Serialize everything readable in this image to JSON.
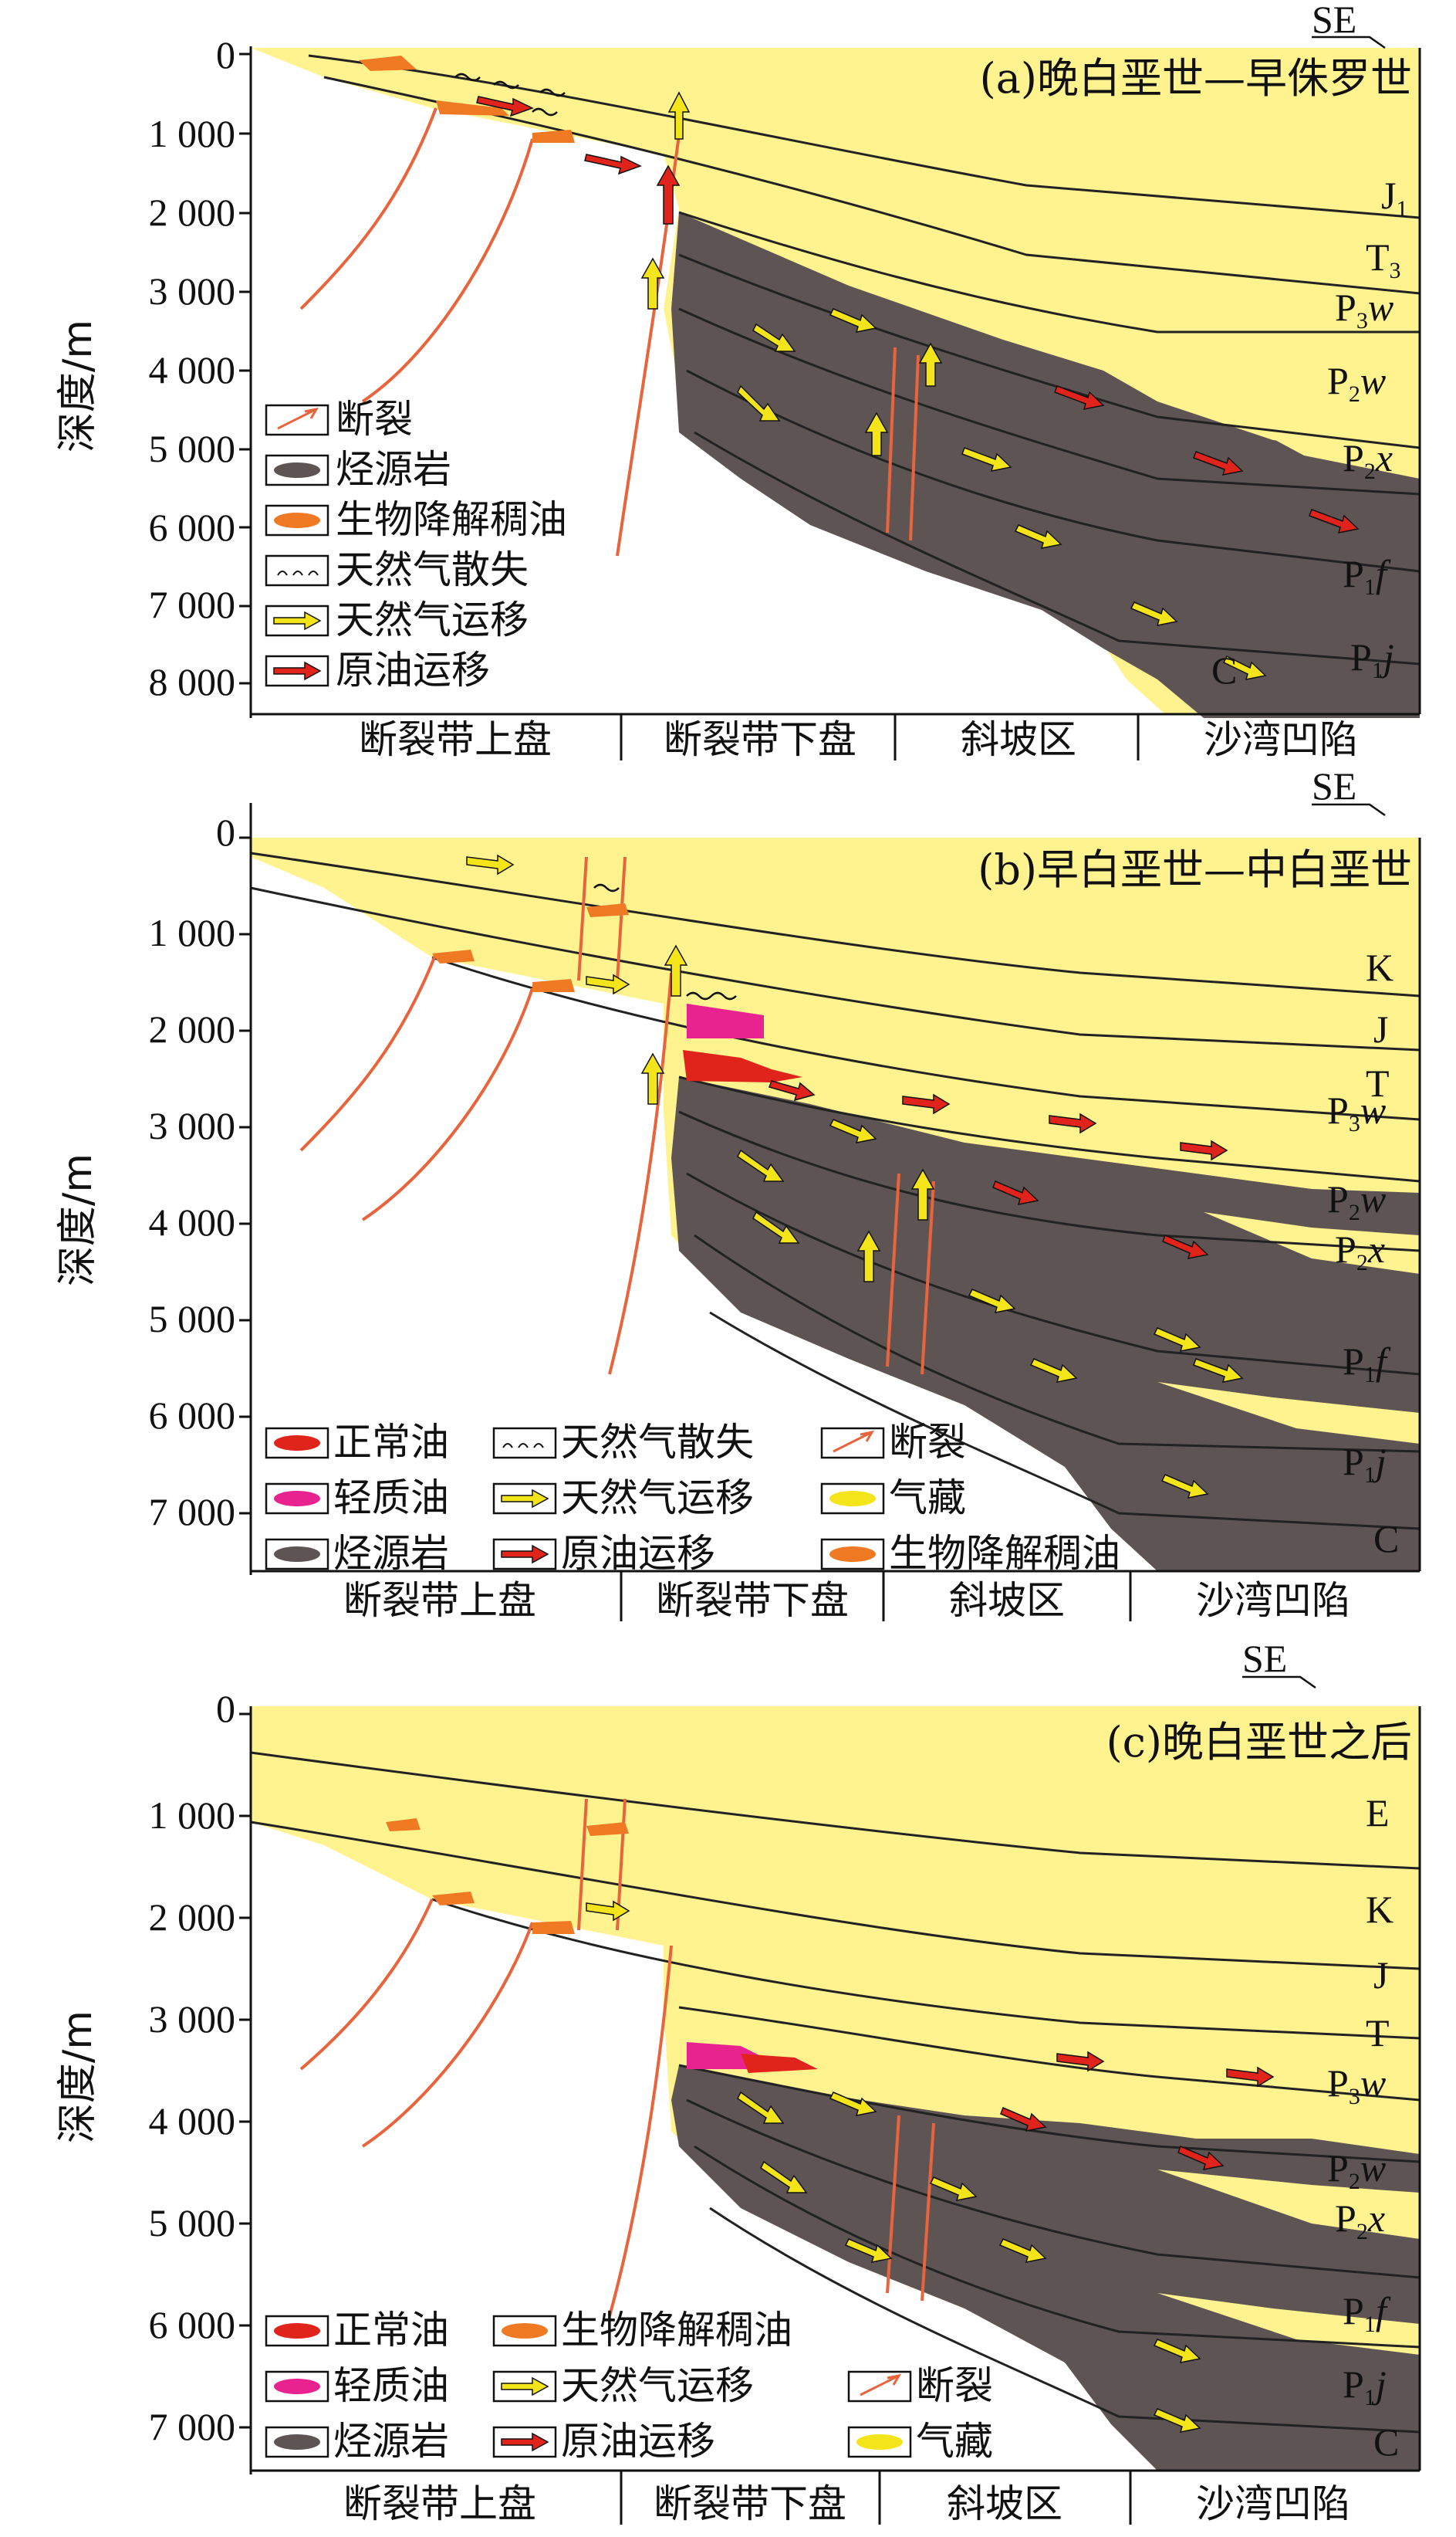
{
  "panels": [
    {
      "title": "(a)晚白垩世—早侏罗世",
      "direction": "SE",
      "depth_ticks": [
        "0",
        "1 000",
        "2 000",
        "3 000",
        "4 000",
        "5 000",
        "6 000",
        "7 000",
        "8 000"
      ],
      "y_axis_label": "深度/m",
      "zones": [
        "断裂带上盘",
        "断裂带下盘",
        "斜坡区",
        "沙湾凹陷"
      ],
      "formations": [
        {
          "base": "J",
          "sub": "1",
          "tail": ""
        },
        {
          "base": "T",
          "sub": "3",
          "tail": ""
        },
        {
          "base": "P",
          "sub": "3",
          "tail": "w"
        },
        {
          "base": "P",
          "sub": "2",
          "tail": "w"
        },
        {
          "base": "P",
          "sub": "2",
          "tail": "x"
        },
        {
          "base": "P",
          "sub": "1",
          "tail": "f"
        },
        {
          "base": "P",
          "sub": "1",
          "tail": "j"
        },
        {
          "base": "C",
          "sub": "",
          "tail": ""
        }
      ],
      "legend": [
        "断裂",
        "烃源岩",
        "生物降解稠油",
        "天然气散失",
        "天然气运移",
        "原油运移"
      ]
    },
    {
      "title": "(b)早白垩世—中白垩世",
      "direction": "SE",
      "depth_ticks": [
        "0",
        "1 000",
        "2 000",
        "3 000",
        "4 000",
        "5 000",
        "6 000",
        "7 000"
      ],
      "y_axis_label": "深度/m",
      "zones": [
        "断裂带上盘",
        "断裂带下盘",
        "斜坡区",
        "沙湾凹陷"
      ],
      "formations": [
        {
          "base": "K",
          "sub": "",
          "tail": ""
        },
        {
          "base": "J",
          "sub": "",
          "tail": ""
        },
        {
          "base": "T",
          "sub": "",
          "tail": ""
        },
        {
          "base": "P",
          "sub": "3",
          "tail": "w"
        },
        {
          "base": "P",
          "sub": "2",
          "tail": "w"
        },
        {
          "base": "P",
          "sub": "2",
          "tail": "x"
        },
        {
          "base": "P",
          "sub": "1",
          "tail": "f"
        },
        {
          "base": "P",
          "sub": "1",
          "tail": "j"
        },
        {
          "base": "C",
          "sub": "",
          "tail": ""
        }
      ],
      "legend": [
        "正常油",
        "天然气散失",
        "断裂",
        "轻质油",
        "天然气运移",
        "气藏",
        "烃源岩",
        "原油运移",
        "生物降解稠油"
      ]
    },
    {
      "title": "(c)晚白垩世之后",
      "direction": "SE",
      "depth_ticks": [
        "0",
        "1 000",
        "2 000",
        "3 000",
        "4 000",
        "5 000",
        "6 000",
        "7 000"
      ],
      "y_axis_label": "深度/m",
      "zones": [
        "断裂带上盘",
        "断裂带下盘",
        "斜坡区",
        "沙湾凹陷"
      ],
      "formations": [
        {
          "base": "E",
          "sub": "",
          "tail": ""
        },
        {
          "base": "K",
          "sub": "",
          "tail": ""
        },
        {
          "base": "J",
          "sub": "",
          "tail": ""
        },
        {
          "base": "T",
          "sub": "",
          "tail": ""
        },
        {
          "base": "P",
          "sub": "3",
          "tail": "w"
        },
        {
          "base": "P",
          "sub": "2",
          "tail": "w"
        },
        {
          "base": "P",
          "sub": "2",
          "tail": "x"
        },
        {
          "base": "P",
          "sub": "1",
          "tail": "f"
        },
        {
          "base": "P",
          "sub": "1",
          "tail": "j"
        },
        {
          "base": "C",
          "sub": "",
          "tail": ""
        }
      ],
      "legend": [
        "正常油",
        "生物降解稠油",
        "轻质油",
        "天然气运移",
        "断裂",
        "烃源岩",
        "原油运移",
        "气藏"
      ]
    }
  ],
  "colors": {
    "sediment": "#fff38f",
    "source_rock": "#5e5454",
    "normal_oil": "#e0241c",
    "light_oil": "#e8238f",
    "heavy_oil": "#f07a24",
    "gas": "#f4e51a",
    "fault": "#e8643c"
  }
}
